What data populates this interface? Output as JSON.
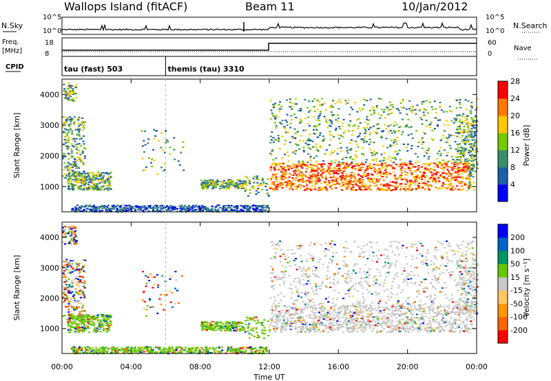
{
  "header": {
    "title": "Wallops Island (fitACF)",
    "beam": "Beam 11",
    "date": "10/Jan/2012"
  },
  "strip": {
    "nsky_label": "N.Sky",
    "nsearch_label": "N.Search",
    "freq_label": "Freq.",
    "freq_unit": "[MHz]",
    "nave_label": "Nave",
    "cpid_label": "CPID",
    "left_ticks_top": [
      "10^5",
      "10^0"
    ],
    "right_ticks_top": [
      "10^5",
      "10^0"
    ],
    "left_ticks_mid": [
      "18",
      "8"
    ],
    "right_ticks_mid": [
      "60",
      "0"
    ],
    "cpid_entries": [
      {
        "text": "tau (fast) 503",
        "start_hour": 0
      },
      {
        "text": "themis (tau) 3310",
        "start_hour": 6
      }
    ]
  },
  "chart_data": [
    {
      "type": "heatmap",
      "name": "power",
      "ylabel": "Slant Range [km]",
      "ylim": [
        180,
        4500
      ],
      "yticks": [
        1000,
        2000,
        3000,
        4000
      ],
      "xlim_hours": [
        0,
        24
      ],
      "colorbar_label": "Power [dB]",
      "colorbar_ticks": [
        "4",
        "8",
        "12",
        "16",
        "20",
        "24",
        "28"
      ],
      "colors": [
        "#0000ff",
        "#1f5fa8",
        "#3c8c6e",
        "#78c800",
        "#ffc800",
        "#ff7800",
        "#ff0000"
      ]
    },
    {
      "type": "heatmap",
      "name": "velocity",
      "ylabel": "Slant Range [km]",
      "ylim": [
        180,
        4500
      ],
      "yticks": [
        1000,
        2000,
        3000,
        4000
      ],
      "xlim_hours": [
        0,
        24
      ],
      "colorbar_label": "Velocity [m s⁻¹]",
      "colorbar_ticks": [
        "-200",
        "-100",
        "-50",
        "-15",
        "15",
        "50",
        "100",
        "200"
      ],
      "colors": [
        "#ff0000",
        "#ff6400",
        "#ff9600",
        "#ffc864",
        "#c8c8c8",
        "#64c800",
        "#009664",
        "#0064c8",
        "#0000ff"
      ]
    }
  ],
  "x_axis": {
    "ticks": [
      "00:00",
      "04:00",
      "08:00",
      "12:00",
      "16:00",
      "20:00",
      "00:00"
    ],
    "label": "Time UT"
  }
}
